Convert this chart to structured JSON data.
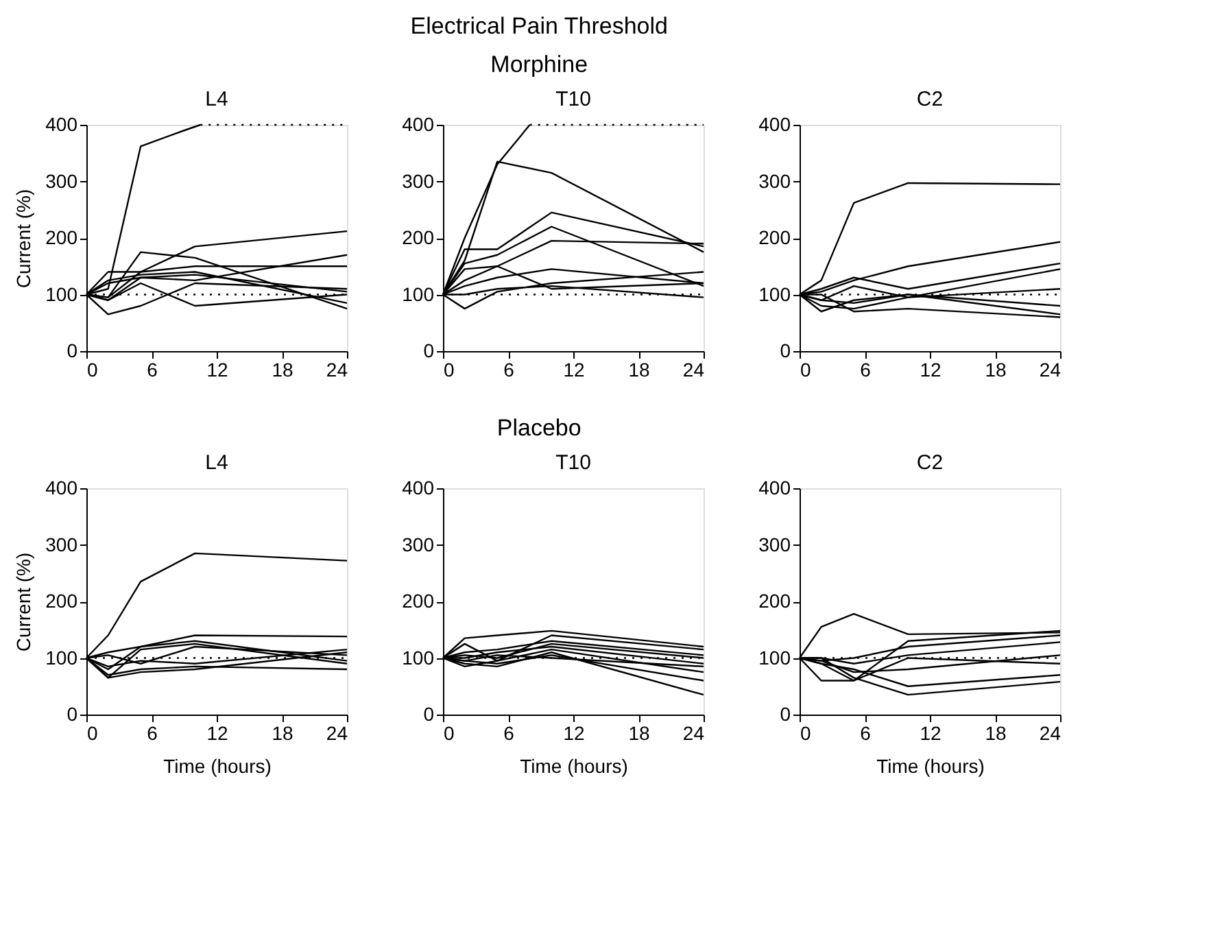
{
  "chart_data": [
    {
      "type": "line",
      "title": "L4",
      "annotations": [
        "Electrical Pain Threshold",
        "Morphine"
      ],
      "ylabel": "Current (%)",
      "xlim": [
        0,
        24
      ],
      "xticks": [
        0,
        6,
        12,
        18,
        24
      ],
      "ylim": [
        0,
        400
      ],
      "yticks": [
        0,
        100,
        200,
        300,
        400
      ],
      "grid": false,
      "marker": "none",
      "line_style": "solid",
      "ref_lines": [
        {
          "axis": "y",
          "value": 100,
          "line_style": "dotted",
          "color": "#000000"
        }
      ],
      "series": [
        {
          "color": "#000000",
          "x": [
            0,
            2,
            5,
            9,
            10.5
          ],
          "values": [
            100,
            110,
            362,
            390,
            400
          ]
        },
        {
          "color": "#000000",
          "x": [
            10.5,
            24
          ],
          "values": [
            400,
            400
          ],
          "line_style": "dotted"
        },
        {
          "color": "#000000",
          "x": [
            0,
            2,
            5,
            10,
            24
          ],
          "values": [
            100,
            95,
            140,
            185,
            212
          ]
        },
        {
          "color": "#000000",
          "x": [
            0,
            2,
            5,
            10,
            24
          ],
          "values": [
            100,
            140,
            140,
            150,
            150
          ]
        },
        {
          "color": "#000000",
          "x": [
            0,
            2,
            5,
            10,
            24
          ],
          "values": [
            100,
            95,
            175,
            165,
            75
          ]
        },
        {
          "color": "#000000",
          "x": [
            0,
            2,
            5,
            10,
            24
          ],
          "values": [
            100,
            120,
            130,
            125,
            170
          ]
        },
        {
          "color": "#000000",
          "x": [
            0,
            2,
            5,
            10,
            24
          ],
          "values": [
            100,
            65,
            80,
            120,
            110
          ]
        },
        {
          "color": "#000000",
          "x": [
            0,
            2,
            5,
            10,
            24
          ],
          "values": [
            100,
            90,
            120,
            80,
            100
          ]
        },
        {
          "color": "#000000",
          "x": [
            0,
            2,
            5,
            10,
            24
          ],
          "values": [
            100,
            125,
            135,
            140,
            85
          ]
        },
        {
          "color": "#000000",
          "x": [
            0,
            2,
            5,
            10,
            24
          ],
          "values": [
            100,
            90,
            130,
            135,
            105
          ]
        }
      ]
    },
    {
      "type": "line",
      "title": "T10",
      "xlim": [
        0,
        24
      ],
      "xticks": [
        0,
        6,
        12,
        18,
        24
      ],
      "ylim": [
        0,
        400
      ],
      "yticks": [
        0,
        100,
        200,
        300,
        400
      ],
      "grid": false,
      "marker": "none",
      "line_style": "solid",
      "ref_lines": [
        {
          "axis": "y",
          "value": 100,
          "line_style": "dotted",
          "color": "#000000"
        }
      ],
      "series": [
        {
          "color": "#000000",
          "x": [
            0,
            2,
            5,
            8
          ],
          "values": [
            100,
            200,
            330,
            400
          ]
        },
        {
          "color": "#000000",
          "x": [
            8,
            24
          ],
          "values": [
            400,
            400
          ],
          "line_style": "dotted"
        },
        {
          "color": "#000000",
          "x": [
            0,
            2,
            5,
            10,
            24
          ],
          "values": [
            100,
            160,
            335,
            315,
            175
          ]
        },
        {
          "color": "#000000",
          "x": [
            0,
            2,
            5,
            10,
            24
          ],
          "values": [
            100,
            180,
            180,
            245,
            185
          ]
        },
        {
          "color": "#000000",
          "x": [
            0,
            2,
            5,
            10,
            24
          ],
          "values": [
            100,
            155,
            170,
            220,
            115
          ]
        },
        {
          "color": "#000000",
          "x": [
            0,
            2,
            5,
            10,
            24
          ],
          "values": [
            100,
            145,
            150,
            195,
            190
          ]
        },
        {
          "color": "#000000",
          "x": [
            0,
            2,
            5,
            10,
            24
          ],
          "values": [
            100,
            125,
            150,
            110,
            120
          ]
        },
        {
          "color": "#000000",
          "x": [
            0,
            2,
            5,
            10,
            24
          ],
          "values": [
            100,
            115,
            130,
            145,
            120
          ]
        },
        {
          "color": "#000000",
          "x": [
            0,
            2,
            5,
            10,
            24
          ],
          "values": [
            100,
            75,
            105,
            120,
            140
          ]
        },
        {
          "color": "#000000",
          "x": [
            0,
            2,
            5,
            10,
            24
          ],
          "values": [
            100,
            100,
            110,
            115,
            95
          ]
        }
      ]
    },
    {
      "type": "line",
      "title": "C2",
      "xlim": [
        0,
        24
      ],
      "xticks": [
        0,
        6,
        12,
        18,
        24
      ],
      "ylim": [
        0,
        400
      ],
      "yticks": [
        0,
        100,
        200,
        300,
        400
      ],
      "grid": false,
      "marker": "none",
      "line_style": "solid",
      "ref_lines": [
        {
          "axis": "y",
          "value": 100,
          "line_style": "dotted",
          "color": "#000000"
        }
      ],
      "series": [
        {
          "color": "#000000",
          "x": [
            0,
            2,
            5,
            10,
            24
          ],
          "values": [
            100,
            125,
            262,
            297,
            295
          ]
        },
        {
          "color": "#000000",
          "x": [
            0,
            2,
            5,
            10,
            24
          ],
          "values": [
            100,
            105,
            125,
            150,
            193
          ]
        },
        {
          "color": "#000000",
          "x": [
            0,
            2,
            5,
            10,
            24
          ],
          "values": [
            100,
            110,
            130,
            110,
            155
          ]
        },
        {
          "color": "#000000",
          "x": [
            0,
            2,
            5,
            10,
            24
          ],
          "values": [
            100,
            90,
            115,
            95,
            145
          ]
        },
        {
          "color": "#000000",
          "x": [
            0,
            2,
            5,
            10,
            24
          ],
          "values": [
            100,
            80,
            75,
            95,
            110
          ]
        },
        {
          "color": "#000000",
          "x": [
            0,
            2,
            5,
            10,
            24
          ],
          "values": [
            100,
            70,
            90,
            100,
            80
          ]
        },
        {
          "color": "#000000",
          "x": [
            0,
            2,
            5,
            10,
            24
          ],
          "values": [
            100,
            100,
            70,
            75,
            60
          ]
        },
        {
          "color": "#000000",
          "x": [
            0,
            2,
            5,
            10,
            24
          ],
          "values": [
            100,
            90,
            85,
            100,
            65
          ]
        }
      ]
    },
    {
      "type": "line",
      "title": "L4",
      "annotations": [
        "Placebo"
      ],
      "ylabel": "Current (%)",
      "xlabel": "Time (hours)",
      "xlim": [
        0,
        24
      ],
      "xticks": [
        0,
        6,
        12,
        18,
        24
      ],
      "ylim": [
        0,
        400
      ],
      "yticks": [
        0,
        100,
        200,
        300,
        400
      ],
      "grid": false,
      "marker": "none",
      "line_style": "solid",
      "ref_lines": [
        {
          "axis": "y",
          "value": 100,
          "line_style": "dotted",
          "color": "#000000"
        }
      ],
      "series": [
        {
          "color": "#000000",
          "x": [
            0,
            2,
            5,
            10,
            24
          ],
          "values": [
            100,
            140,
            235,
            285,
            272
          ]
        },
        {
          "color": "#000000",
          "x": [
            0,
            2,
            5,
            10,
            24
          ],
          "values": [
            100,
            110,
            120,
            140,
            138
          ]
        },
        {
          "color": "#000000",
          "x": [
            0,
            2,
            5,
            10,
            24
          ],
          "values": [
            100,
            65,
            115,
            125,
            90
          ]
        },
        {
          "color": "#000000",
          "x": [
            0,
            2,
            5,
            10,
            24
          ],
          "values": [
            100,
            80,
            120,
            130,
            95
          ]
        },
        {
          "color": "#000000",
          "x": [
            0,
            2,
            5,
            10,
            24
          ],
          "values": [
            100,
            70,
            80,
            85,
            80
          ]
        },
        {
          "color": "#000000",
          "x": [
            0,
            2,
            5,
            10,
            24
          ],
          "values": [
            100,
            85,
            95,
            90,
            115
          ]
        },
        {
          "color": "#000000",
          "x": [
            0,
            2,
            5,
            10,
            24
          ],
          "values": [
            100,
            65,
            75,
            80,
            110
          ]
        },
        {
          "color": "#000000",
          "x": [
            0,
            2,
            5,
            10,
            24
          ],
          "values": [
            100,
            105,
            90,
            120,
            105
          ]
        }
      ]
    },
    {
      "type": "line",
      "title": "T10",
      "xlabel": "Time (hours)",
      "xlim": [
        0,
        24
      ],
      "xticks": [
        0,
        6,
        12,
        18,
        24
      ],
      "ylim": [
        0,
        400
      ],
      "yticks": [
        0,
        100,
        200,
        300,
        400
      ],
      "grid": false,
      "marker": "none",
      "line_style": "solid",
      "ref_lines": [
        {
          "axis": "y",
          "value": 100,
          "line_style": "dotted",
          "color": "#000000"
        }
      ],
      "series": [
        {
          "color": "#000000",
          "x": [
            0,
            2,
            5,
            10,
            24
          ],
          "values": [
            100,
            135,
            140,
            148,
            120
          ]
        },
        {
          "color": "#000000",
          "x": [
            0,
            2,
            5,
            10,
            24
          ],
          "values": [
            100,
            125,
            95,
            140,
            115
          ]
        },
        {
          "color": "#000000",
          "x": [
            0,
            2,
            5,
            10,
            24
          ],
          "values": [
            100,
            90,
            85,
            110,
            35
          ]
        },
        {
          "color": "#000000",
          "x": [
            0,
            2,
            5,
            10,
            24
          ],
          "values": [
            100,
            95,
            90,
            105,
            60
          ]
        },
        {
          "color": "#000000",
          "x": [
            0,
            2,
            5,
            10,
            24
          ],
          "values": [
            100,
            105,
            100,
            125,
            100
          ]
        },
        {
          "color": "#000000",
          "x": [
            0,
            2,
            5,
            10,
            24
          ],
          "values": [
            100,
            100,
            110,
            120,
            90
          ]
        },
        {
          "color": "#000000",
          "x": [
            0,
            2,
            5,
            10,
            24
          ],
          "values": [
            100,
            85,
            95,
            115,
            75
          ]
        },
        {
          "color": "#000000",
          "x": [
            0,
            2,
            5,
            10,
            24
          ],
          "values": [
            100,
            110,
            115,
            130,
            105
          ]
        },
        {
          "color": "#000000",
          "x": [
            0,
            2,
            5,
            10,
            24
          ],
          "values": [
            100,
            95,
            105,
            100,
            85
          ]
        }
      ]
    },
    {
      "type": "line",
      "title": "C2",
      "xlabel": "Time (hours)",
      "xlim": [
        0,
        24
      ],
      "xticks": [
        0,
        6,
        12,
        18,
        24
      ],
      "ylim": [
        0,
        400
      ],
      "yticks": [
        0,
        100,
        200,
        300,
        400
      ],
      "grid": false,
      "marker": "none",
      "line_style": "solid",
      "ref_lines": [
        {
          "axis": "y",
          "value": 100,
          "line_style": "dotted",
          "color": "#000000"
        }
      ],
      "series": [
        {
          "color": "#000000",
          "x": [
            0,
            2,
            5,
            10,
            24
          ],
          "values": [
            100,
            155,
            178,
            142,
            145
          ]
        },
        {
          "color": "#000000",
          "x": [
            0,
            2,
            5,
            10,
            24
          ],
          "values": [
            100,
            60,
            60,
            130,
            148
          ]
        },
        {
          "color": "#000000",
          "x": [
            0,
            2,
            5,
            10,
            24
          ],
          "values": [
            100,
            95,
            100,
            120,
            140
          ]
        },
        {
          "color": "#000000",
          "x": [
            0,
            2,
            5,
            10,
            24
          ],
          "values": [
            100,
            90,
            80,
            50,
            70
          ]
        },
        {
          "color": "#000000",
          "x": [
            0,
            2,
            5,
            10,
            24
          ],
          "values": [
            100,
            100,
            65,
            35,
            58
          ]
        },
        {
          "color": "#000000",
          "x": [
            0,
            2,
            5,
            10,
            24
          ],
          "values": [
            100,
            95,
            75,
            80,
            105
          ]
        },
        {
          "color": "#000000",
          "x": [
            0,
            2,
            5,
            10,
            24
          ],
          "values": [
            100,
            100,
            90,
            105,
            128
          ]
        },
        {
          "color": "#000000",
          "x": [
            0,
            2,
            5,
            10,
            24
          ],
          "values": [
            100,
            90,
            60,
            100,
            90
          ]
        }
      ]
    }
  ]
}
